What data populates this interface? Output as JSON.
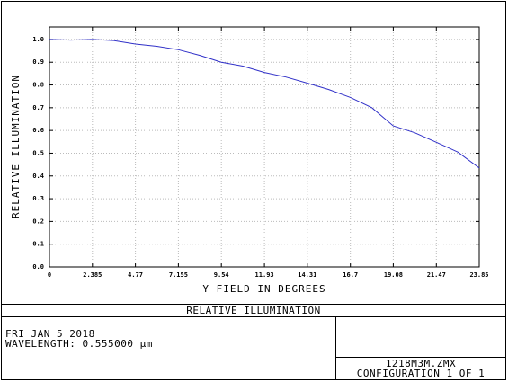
{
  "chart_data": {
    "type": "line",
    "ylabel": "RELATIVE ILLUMINATION",
    "xlabel": "Y FIELD IN DEGREES",
    "x": [
      0,
      1.19,
      2.385,
      3.58,
      4.77,
      5.96,
      7.155,
      8.35,
      9.54,
      10.73,
      11.93,
      13.12,
      14.31,
      15.5,
      16.7,
      17.89,
      19.08,
      20.27,
      21.47,
      22.66,
      23.85
    ],
    "series": [
      {
        "color": "#3030c8",
        "values": [
          1.0,
          0.997,
          1.0,
          0.995,
          0.98,
          0.97,
          0.955,
          0.93,
          0.9,
          0.883,
          0.855,
          0.835,
          0.808,
          0.78,
          0.745,
          0.7,
          0.62,
          0.59,
          0.548,
          0.505,
          0.435
        ]
      }
    ],
    "xlim": [
      0,
      23.85
    ],
    "ylim": [
      0,
      1.055
    ],
    "xticks": [
      0,
      2.385,
      4.77,
      7.155,
      9.54,
      11.93,
      14.31,
      16.7,
      19.08,
      21.47,
      23.85
    ],
    "yticks": [
      {
        "value": 0,
        "label": "0.0"
      },
      0.1,
      0.2,
      0.3,
      0.4,
      0.5,
      0.6,
      0.7,
      0.8,
      0.9,
      {
        "value": 1,
        "label": "1.0"
      }
    ],
    "grid": true
  },
  "footer": {
    "title": "RELATIVE ILLUMINATION",
    "date": "FRI JAN 5 2018",
    "wavelength": "WAVELENGTH: 0.555000 µm",
    "file": "1218M3M.ZMX",
    "configuration": "CONFIGURATION 1 OF 1"
  }
}
